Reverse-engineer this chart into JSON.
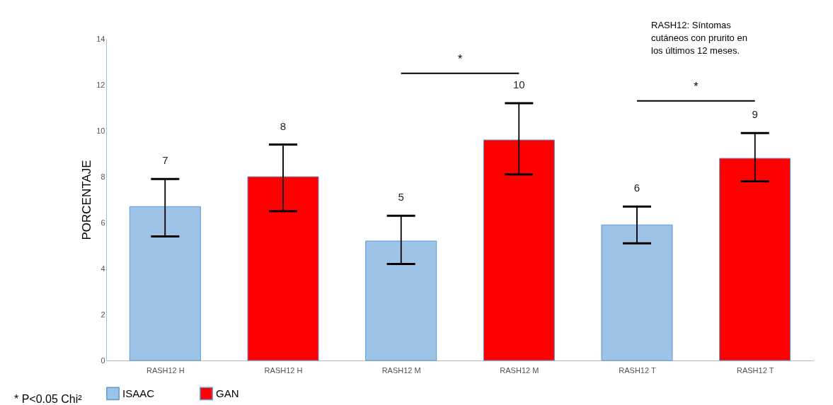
{
  "chart_data": {
    "type": "bar",
    "ylabel": "PORCENTAJE",
    "categories": [
      "RASH12 H",
      "RASH12 H",
      "RASH12 M",
      "RASH12 M",
      "RASH12 T",
      "RASH12 T"
    ],
    "series": [
      {
        "name": "ISAAC",
        "color": "#9dc3e6",
        "values": [
          6.7,
          null,
          5.2,
          null,
          5.9,
          null
        ],
        "errors": [
          [
            5.4,
            7.9
          ],
          null,
          [
            4.2,
            6.3
          ],
          null,
          [
            5.1,
            6.7
          ],
          null
        ],
        "value_labels": [
          "7",
          null,
          "5",
          null,
          "6",
          null
        ]
      },
      {
        "name": "GAN",
        "color": "#ff0000",
        "values": [
          null,
          8.0,
          null,
          9.6,
          null,
          8.8
        ],
        "errors": [
          null,
          [
            6.5,
            9.4
          ],
          null,
          [
            8.1,
            11.2
          ],
          null,
          [
            7.8,
            9.9
          ]
        ],
        "value_labels": [
          null,
          "8",
          null,
          "10",
          null,
          "9"
        ]
      }
    ],
    "ylim": [
      0,
      14
    ],
    "yticks": [
      0,
      2,
      4,
      6,
      8,
      10,
      12,
      14
    ],
    "grid": false,
    "legend": "bottom",
    "annotations": [
      "*",
      "*",
      "RASH12: Síntomas cutáneos con prurito en los últimos 12 meses.",
      "* P<0.05 Chi²"
    ]
  }
}
